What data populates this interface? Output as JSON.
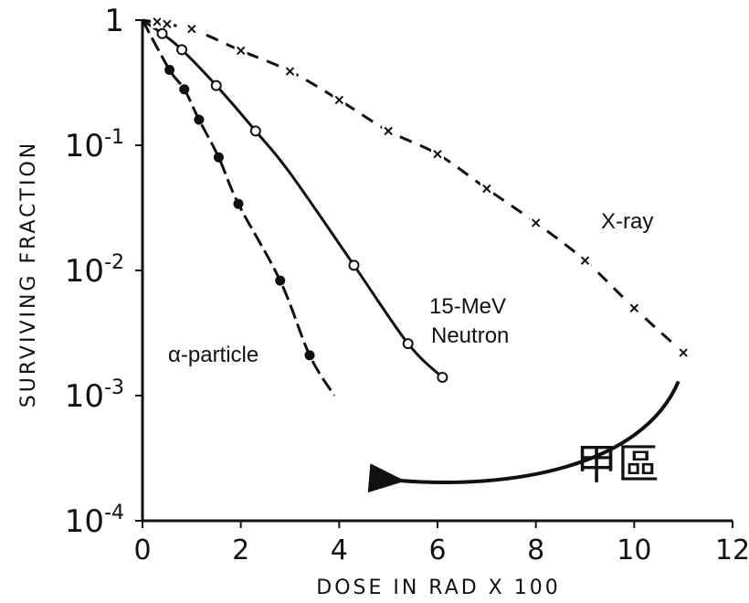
{
  "chart_data": {
    "type": "scatter",
    "xlabel": "DOSE IN RAD  X 100",
    "ylabel": "SURVIVING FRACTION",
    "xlim": [
      0,
      12
    ],
    "ylim": [
      0.0001,
      1
    ],
    "y_scale": "log",
    "x_ticks": [
      {
        "value": 0,
        "label": "0"
      },
      {
        "value": 2,
        "label": "2"
      },
      {
        "value": 4,
        "label": "4"
      },
      {
        "value": 6,
        "label": "6"
      },
      {
        "value": 8,
        "label": "8"
      },
      {
        "value": 10,
        "label": "10"
      },
      {
        "value": 12,
        "label": "12"
      }
    ],
    "y_ticks": [
      {
        "value": 1,
        "base": "1",
        "exp": ""
      },
      {
        "value": 0.1,
        "base": "10",
        "exp": "-1"
      },
      {
        "value": 0.01,
        "base": "10",
        "exp": "-2"
      },
      {
        "value": 0.001,
        "base": "10",
        "exp": "-3"
      },
      {
        "value": 0.0001,
        "base": "10",
        "exp": "-4"
      }
    ],
    "grid": false,
    "series": [
      {
        "name": "X-ray",
        "marker": "x",
        "x": [
          0.3,
          0.5,
          1.0,
          2.0,
          3.0,
          4.0,
          5.0,
          6.0,
          7.0,
          8.0,
          9.0,
          10.0,
          11.0
        ],
        "y": [
          0.97,
          0.93,
          0.85,
          0.57,
          0.39,
          0.23,
          0.13,
          0.085,
          0.045,
          0.024,
          0.012,
          0.005,
          0.0022
        ],
        "curve_x": [
          0,
          1,
          2,
          3,
          4,
          5,
          6,
          7,
          8,
          9,
          10,
          11
        ],
        "curve_y": [
          1,
          0.84,
          0.57,
          0.39,
          0.23,
          0.13,
          0.085,
          0.045,
          0.024,
          0.012,
          0.005,
          0.0022
        ]
      },
      {
        "name": "15-MeV Neutron",
        "marker": "open-circle",
        "x": [
          0.4,
          0.8,
          1.5,
          2.3,
          4.3,
          5.4,
          6.1
        ],
        "y": [
          0.78,
          0.58,
          0.3,
          0.13,
          0.011,
          0.0026,
          0.0014
        ],
        "curve_x": [
          0,
          0.4,
          0.8,
          1.5,
          2.3,
          3.0,
          4.3,
          5.4,
          6.1
        ],
        "curve_y": [
          1,
          0.78,
          0.58,
          0.3,
          0.13,
          0.06,
          0.011,
          0.0026,
          0.0014
        ]
      },
      {
        "name": "α-particle",
        "marker": "filled-circle",
        "x": [
          0.55,
          0.85,
          1.15,
          1.55,
          1.95,
          2.8,
          3.4
        ],
        "y": [
          0.4,
          0.28,
          0.16,
          0.08,
          0.034,
          0.0083,
          0.0021
        ],
        "curve_x": [
          0,
          0.55,
          0.85,
          1.15,
          1.55,
          1.95,
          2.8,
          3.4,
          3.9
        ],
        "curve_y": [
          1,
          0.4,
          0.28,
          0.16,
          0.08,
          0.034,
          0.0083,
          0.0021,
          0.001
        ]
      }
    ],
    "annotations": {
      "xray_label": "X-ray",
      "neutron_label_line1": "15-MeV",
      "neutron_label_line2": "Neutron",
      "alpha_label": "α-particle",
      "arrow_label": "甲區",
      "arrow_from": {
        "x": 10.9,
        "y": 0.0013
      },
      "arrow_to": {
        "x": 5.2,
        "y": 0.00021
      }
    }
  }
}
